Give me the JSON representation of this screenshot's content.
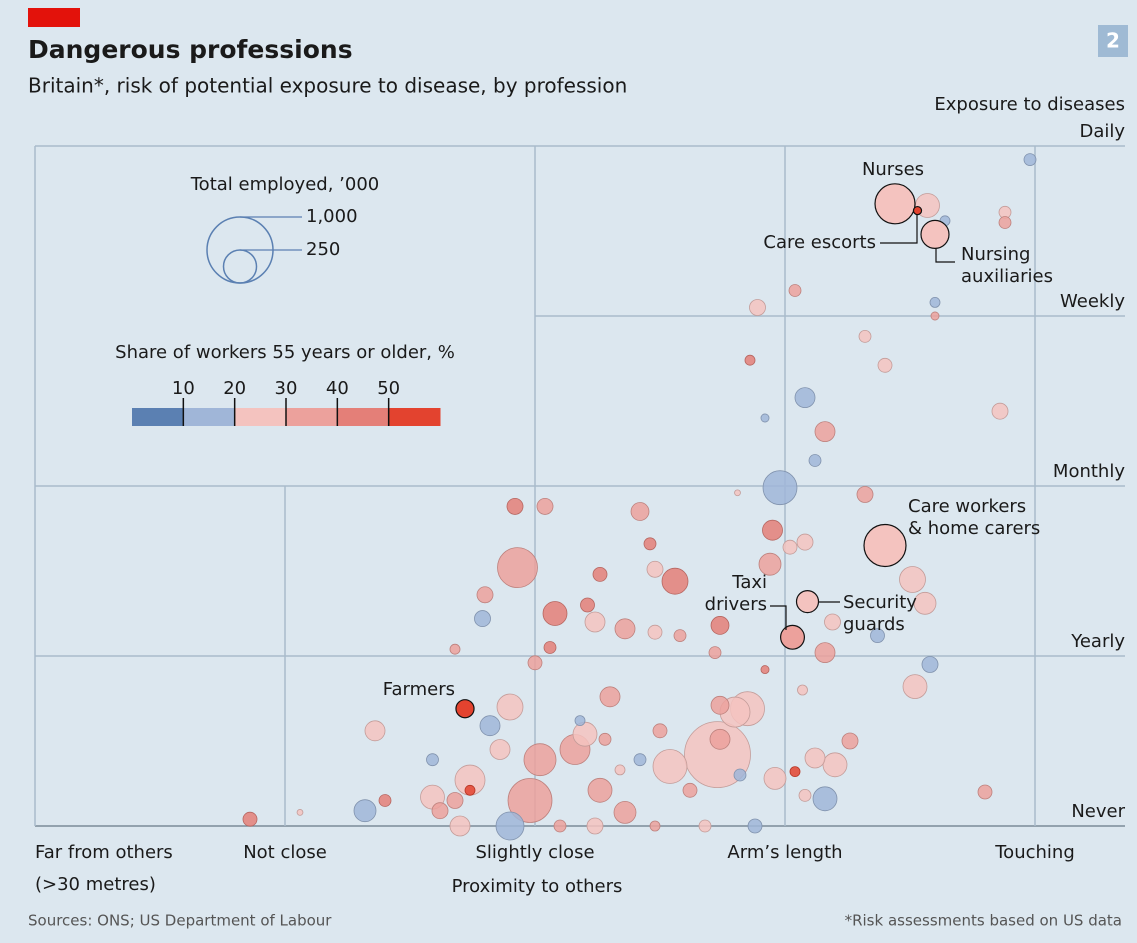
{
  "chart_data": {
    "type": "scatter",
    "title": "Dangerous professions",
    "subtitle": "Britain*, risk of potential exposure to disease, by profession",
    "badge": "2",
    "xlabel": "Proximity to others",
    "ylabel": "Exposure to diseases",
    "xlim": [
      0,
      4
    ],
    "ylim": [
      0,
      4
    ],
    "xticks": [
      {
        "value": 0,
        "label": "Far from others",
        "note": "(>30 metres)"
      },
      {
        "value": 1,
        "label": "Not close"
      },
      {
        "value": 2,
        "label": "Slightly close"
      },
      {
        "value": 3,
        "label": "Arm’s length"
      },
      {
        "value": 4,
        "label": "Touching"
      }
    ],
    "yticks": [
      {
        "value": 0,
        "label": "Never"
      },
      {
        "value": 1,
        "label": "Yearly"
      },
      {
        "value": 2,
        "label": "Monthly"
      },
      {
        "value": 3,
        "label": "Weekly"
      },
      {
        "value": 4,
        "label": "Daily"
      }
    ],
    "x": [
      3.44,
      3.53,
      3.6,
      3.4,
      3.09,
      3.03,
      1.72,
      3.98,
      3.57,
      3.64,
      3.88,
      3.88,
      3.04,
      2.89,
      3.6,
      3.6,
      3.32,
      3.4,
      2.86,
      3.08,
      3.86,
      2.92,
      3.16,
      3.12,
      2.98,
      2.81,
      3.32,
      2.95,
      3.08,
      3.02,
      2.94,
      3.51,
      3.56,
      3.19,
      3.37,
      3.16,
      3.58,
      3.52,
      3.07,
      2.92,
      3.26,
      3.8,
      3.16,
      3.2,
      3.12,
      3.04,
      3.08,
      2.96,
      2.82,
      2.88,
      2.85,
      2.8,
      2.73,
      2.54,
      2.74,
      2.74,
      2.72,
      2.74,
      2.58,
      2.48,
      2.56,
      2.48,
      2.46,
      2.42,
      2.26,
      2.21,
      2.24,
      2.36,
      2.08,
      2.06,
      2.0,
      1.93,
      1.92,
      2.04,
      1.8,
      1.79,
      1.68,
      1.9,
      1.82,
      1.86,
      1.36,
      1.59,
      1.59,
      1.32,
      1.4,
      1.06,
      0.86,
      1.9,
      1.98,
      2.16,
      2.2,
      2.02,
      2.26,
      2.36,
      2.3,
      2.18,
      2.5,
      2.62,
      2.68,
      2.48,
      2.42,
      1.74,
      1.68,
      1.74,
      1.62,
      1.7,
      2.1,
      2.24,
      2.34,
      2.28
    ],
    "values": [
      3.66,
      3.62,
      3.48,
      1.65,
      1.32,
      1.11,
      0.69,
      3.92,
      3.65,
      3.56,
      3.61,
      3.55,
      3.15,
      3.05,
      3.08,
      3.0,
      2.88,
      2.71,
      2.74,
      2.52,
      2.44,
      2.4,
      2.32,
      2.15,
      1.99,
      1.96,
      1.95,
      1.74,
      1.67,
      1.64,
      1.54,
      1.45,
      1.31,
      1.2,
      1.12,
      1.02,
      0.95,
      0.82,
      0.8,
      0.92,
      0.5,
      0.2,
      0.16,
      0.36,
      0.4,
      0.32,
      0.18,
      0.28,
      0.3,
      0.0,
      0.69,
      0.67,
      0.42,
      0.35,
      0.71,
      0.51,
      1.02,
      1.18,
      1.12,
      1.14,
      1.44,
      1.51,
      1.66,
      1.85,
      1.48,
      1.3,
      1.2,
      1.16,
      1.25,
      1.05,
      0.96,
      1.52,
      1.88,
      1.88,
      1.36,
      1.22,
      1.04,
      0.7,
      0.59,
      0.45,
      0.56,
      0.39,
      0.17,
      0.09,
      0.15,
      0.08,
      0.04,
      0.0,
      0.15,
      0.45,
      0.54,
      0.39,
      0.21,
      0.08,
      0.76,
      0.62,
      0.56,
      0.21,
      0.0,
      0.0,
      0.39,
      0.27,
      0.15,
      0.21,
      0.09,
      0.0,
      0.0,
      0.0,
      0.33,
      0.51
    ],
    "sizes": [
      367,
      15,
      180,
      405,
      111,
      130,
      75,
      33,
      132,
      23,
      33,
      33,
      33,
      59,
      23,
      15,
      33,
      45,
      23,
      92,
      59,
      15,
      92,
      33,
      265,
      8,
      59,
      92,
      59,
      45,
      111,
      155,
      111,
      59,
      45,
      92,
      59,
      132,
      23,
      15,
      59,
      45,
      132,
      132,
      92,
      23,
      33,
      111,
      33,
      45,
      265,
      207,
      1000,
      265,
      74,
      92,
      33,
      74,
      33,
      45,
      155,
      59,
      33,
      74,
      45,
      45,
      92,
      92,
      132,
      33,
      45,
      367,
      59,
      59,
      59,
      59,
      23,
      155,
      92,
      92,
      92,
      33,
      132,
      111,
      33,
      8,
      45,
      180,
      444,
      207,
      132,
      235,
      132,
      111,
      92,
      23,
      45,
      45,
      33,
      23,
      33,
      207,
      59,
      23,
      59,
      92,
      33,
      59,
      23,
      33
    ],
    "shares": [
      28,
      50,
      28,
      28,
      28,
      35,
      55,
      10,
      20,
      10,
      20,
      35,
      30,
      20,
      10,
      30,
      20,
      25,
      45,
      10,
      20,
      10,
      35,
      10,
      10,
      20,
      30,
      45,
      20,
      20,
      30,
      20,
      20,
      20,
      10,
      30,
      10,
      20,
      20,
      45,
      30,
      30,
      10,
      20,
      20,
      50,
      20,
      20,
      10,
      10,
      20,
      20,
      20,
      20,
      30,
      30,
      30,
      40,
      30,
      20,
      45,
      20,
      45,
      30,
      45,
      45,
      20,
      30,
      45,
      45,
      30,
      35,
      45,
      30,
      30,
      10,
      30,
      20,
      10,
      20,
      25,
      10,
      20,
      10,
      45,
      20,
      45,
      10,
      30,
      30,
      20,
      30,
      30,
      30,
      30,
      10,
      30,
      30,
      20,
      30,
      10,
      20,
      30,
      55,
      30,
      20,
      30,
      20,
      20,
      30
    ],
    "annotations": [
      {
        "lines": [
          "Nurses"
        ],
        "point": 0
      },
      {
        "lines": [
          "Care escorts"
        ],
        "point": 1
      },
      {
        "lines": [
          "Nursing",
          "auxiliaries"
        ],
        "point": 2
      },
      {
        "lines": [
          "Care workers",
          "& home carers"
        ],
        "point": 3
      },
      {
        "lines": [
          "Security",
          "guards"
        ],
        "point": 4
      },
      {
        "lines": [
          "Taxi",
          "drivers"
        ],
        "point": 5
      },
      {
        "lines": [
          "Farmers"
        ],
        "point": 6
      }
    ],
    "size_legend": {
      "title": "Total employed, ’000",
      "ticks": [
        {
          "value": 1000,
          "label": "1,000"
        },
        250
      ]
    },
    "color_legend": {
      "title": "Share of workers 55 years or older, %",
      "lim": [
        0,
        60
      ],
      "ticks": [
        10,
        20,
        30,
        40,
        50
      ],
      "colors": [
        "#5b80b2",
        "#a0b6d8",
        "#f4c3bf",
        "#eca19c",
        "#e47f78",
        "#e3432f"
      ]
    },
    "source": "Sources: ONS; US Department of Labour",
    "footnote": "*Risk assessments based on US data"
  }
}
